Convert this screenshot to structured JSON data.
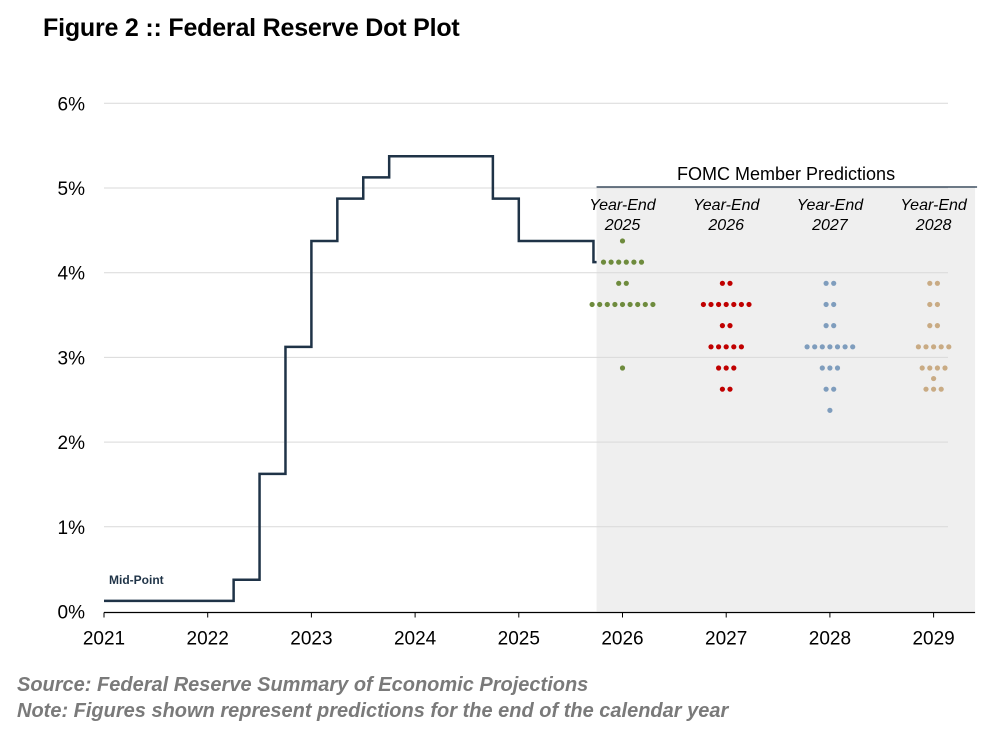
{
  "title": "Figure 2 :: Federal Reserve Dot Plot",
  "footer": {
    "source": "Source: Federal Reserve Summary of Economic Projections",
    "note": "Note: Figures shown represent predictions for the end of the calendar year"
  },
  "chart_data": {
    "type": "scatter",
    "title": "Figure 2 :: Federal Reserve Dot Plot",
    "ylim": [
      0,
      6
    ],
    "xlim": [
      2021,
      2029.4
    ],
    "y_ticks": [
      {
        "value": 0,
        "label": "0%"
      },
      {
        "value": 1,
        "label": "1%"
      },
      {
        "value": 2,
        "label": "2%"
      },
      {
        "value": 3,
        "label": "3%"
      },
      {
        "value": 4,
        "label": "4%"
      },
      {
        "value": 5,
        "label": "5%"
      },
      {
        "value": 6,
        "label": "6%"
      }
    ],
    "x_ticks": [
      "2021",
      "2022",
      "2023",
      "2024",
      "2025",
      "2026",
      "2027",
      "2028",
      "2029"
    ],
    "grid": true,
    "rate_series": {
      "name": "Fed Funds Mid-Point",
      "label": "Mid-Point",
      "color": "#1f3347",
      "steps": [
        {
          "x": 2021.0,
          "y": 0.125
        },
        {
          "x": 2022.25,
          "y": 0.375
        },
        {
          "x": 2022.5,
          "y": 1.625
        },
        {
          "x": 2022.75,
          "y": 3.125
        },
        {
          "x": 2023.0,
          "y": 4.375
        },
        {
          "x": 2023.25,
          "y": 4.875
        },
        {
          "x": 2023.5,
          "y": 5.125
        },
        {
          "x": 2023.75,
          "y": 5.375
        },
        {
          "x": 2024.75,
          "y": 4.875
        },
        {
          "x": 2025.0,
          "y": 4.375
        },
        {
          "x": 2025.72,
          "y": 4.125
        }
      ],
      "end_x": 2025.75
    },
    "prediction_panel": {
      "title": "FOMC Member Predictions",
      "x_start": 2025.75,
      "x_end": 2029.4
    },
    "dot_series": [
      {
        "name": "Year-End 2025",
        "line1": "Year-End",
        "line2": "2025",
        "x": 2026,
        "color": "#6e8b3d",
        "dots": [
          {
            "rate": 4.375,
            "count": 1
          },
          {
            "rate": 4.125,
            "count": 6
          },
          {
            "rate": 3.875,
            "count": 2
          },
          {
            "rate": 3.625,
            "count": 9
          },
          {
            "rate": 2.875,
            "count": 1
          }
        ]
      },
      {
        "name": "Year-End 2026",
        "line1": "Year-End",
        "line2": "2026",
        "x": 2027,
        "color": "#c00000",
        "dots": [
          {
            "rate": 3.875,
            "count": 2
          },
          {
            "rate": 3.625,
            "count": 7
          },
          {
            "rate": 3.375,
            "count": 2
          },
          {
            "rate": 3.125,
            "count": 5
          },
          {
            "rate": 2.875,
            "count": 3
          },
          {
            "rate": 2.625,
            "count": 2
          }
        ]
      },
      {
        "name": "Year-End 2027",
        "line1": "Year-End",
        "line2": "2027",
        "x": 2028,
        "color": "#7f9dbd",
        "dots": [
          {
            "rate": 3.875,
            "count": 2
          },
          {
            "rate": 3.625,
            "count": 2
          },
          {
            "rate": 3.375,
            "count": 2
          },
          {
            "rate": 3.125,
            "count": 7
          },
          {
            "rate": 2.875,
            "count": 3
          },
          {
            "rate": 2.625,
            "count": 2
          },
          {
            "rate": 2.375,
            "count": 1
          }
        ]
      },
      {
        "name": "Year-End 2028",
        "line1": "Year-End",
        "line2": "2028",
        "x": 2029,
        "color": "#c9ab84",
        "dots": [
          {
            "rate": 3.875,
            "count": 2
          },
          {
            "rate": 3.625,
            "count": 2
          },
          {
            "rate": 3.375,
            "count": 2
          },
          {
            "rate": 3.125,
            "count": 5
          },
          {
            "rate": 2.875,
            "count": 4
          },
          {
            "rate": 2.75,
            "count": 1
          },
          {
            "rate": 2.625,
            "count": 3
          }
        ]
      }
    ]
  }
}
